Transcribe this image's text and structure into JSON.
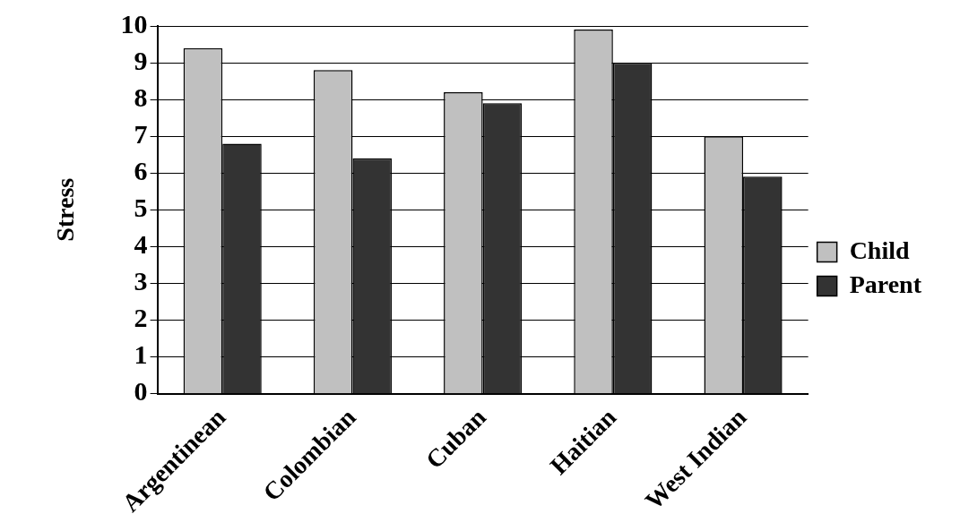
{
  "chart_data": {
    "type": "bar",
    "ylabel": "Stress",
    "categories": [
      "Argentinean",
      "Colombian",
      "Cuban",
      "Haitian",
      "West Indian"
    ],
    "series": [
      {
        "name": "Child",
        "color": "#c0c0c0",
        "values": [
          9.4,
          8.8,
          8.2,
          9.9,
          7.0
        ]
      },
      {
        "name": "Parent",
        "color": "#333333",
        "values": [
          6.8,
          6.4,
          7.9,
          9.0,
          5.9
        ]
      }
    ],
    "ylim": [
      0,
      10
    ],
    "yticks": [
      0,
      1,
      2,
      3,
      4,
      5,
      6,
      7,
      8,
      9,
      10
    ],
    "grid": "y",
    "legend": "right"
  }
}
